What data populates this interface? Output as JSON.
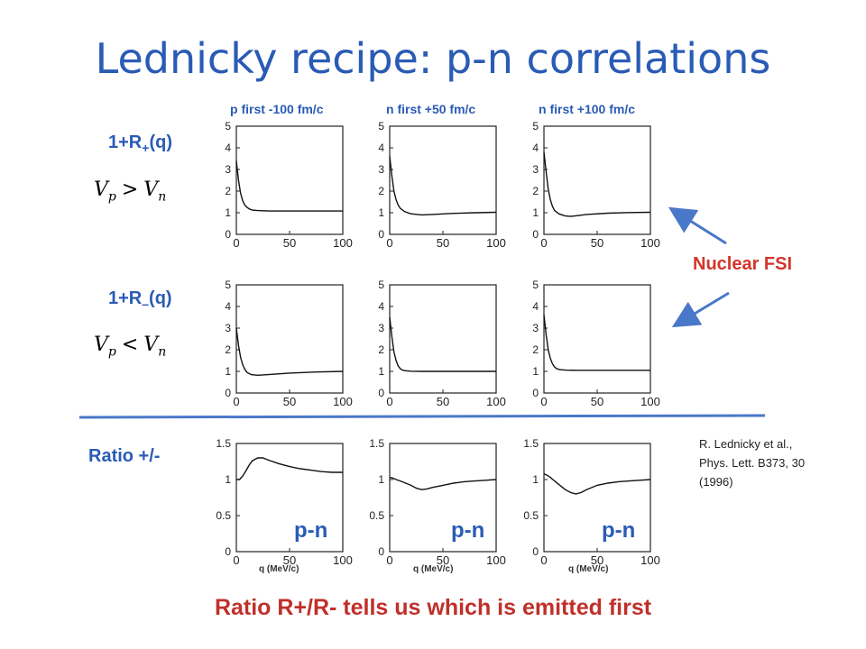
{
  "title": "Lednicky recipe: p-n correlations",
  "column_headers": [
    "p first -100 fm/c",
    "n first +50 fm/c",
    "n first +100 fm/c"
  ],
  "row_labels": {
    "plus": {
      "main": "1+R",
      "sub": "+",
      "tail": "(q)"
    },
    "minus": {
      "main": "1+R",
      "sub": "–",
      "tail": "(q)"
    },
    "ratio": "Ratio +/-"
  },
  "conditions": {
    "plus": {
      "a": "V",
      "a_sub": "p",
      "op": ">",
      "b": "V",
      "b_sub": "n"
    },
    "minus": {
      "a": "V",
      "a_sub": "p",
      "op": "<",
      "b": "V",
      "b_sub": "n"
    }
  },
  "annotation": "Nuclear FSI",
  "reference": [
    "R. Lednicky et al.,",
    "Phys. Lett. B373, 30",
    "(1996)"
  ],
  "pn_label": "p-n",
  "xlabel": "q (MeV/c)",
  "bottom_text": "Ratio R+/R- tells us which is emitted first",
  "colors": {
    "title": "#2a5bb5",
    "accent_red": "#d2352b",
    "arrow": "#4a78c8",
    "divider": "#4a78c8"
  },
  "chart_data": [
    {
      "type": "line",
      "row": "plus",
      "col": 0,
      "xlim": [
        0,
        100
      ],
      "ylim": [
        0,
        5
      ],
      "xticks": [
        "0",
        "50",
        "100"
      ],
      "yticks": [
        "0",
        "1",
        "2",
        "3",
        "4",
        "5"
      ],
      "x": [
        0,
        2,
        4,
        6,
        8,
        10,
        12,
        15,
        20,
        30,
        50,
        75,
        100
      ],
      "y": [
        3.4,
        2.5,
        1.9,
        1.55,
        1.35,
        1.25,
        1.18,
        1.12,
        1.1,
        1.08,
        1.08,
        1.08,
        1.08
      ]
    },
    {
      "type": "line",
      "row": "plus",
      "col": 1,
      "xlim": [
        0,
        100
      ],
      "ylim": [
        0,
        5
      ],
      "xticks": [
        "0",
        "50",
        "100"
      ],
      "yticks": [
        "0",
        "1",
        "2",
        "3",
        "4",
        "5"
      ],
      "x": [
        0,
        2,
        4,
        6,
        8,
        10,
        14,
        20,
        30,
        40,
        60,
        80,
        100
      ],
      "y": [
        3.6,
        2.7,
        2.0,
        1.6,
        1.35,
        1.2,
        1.05,
        0.95,
        0.9,
        0.92,
        0.97,
        1.0,
        1.02
      ]
    },
    {
      "type": "line",
      "row": "plus",
      "col": 2,
      "xlim": [
        0,
        100
      ],
      "ylim": [
        0,
        5
      ],
      "xticks": [
        "0",
        "50",
        "100"
      ],
      "yticks": [
        "0",
        "1",
        "2",
        "3",
        "4",
        "5"
      ],
      "x": [
        0,
        2,
        4,
        6,
        8,
        10,
        14,
        20,
        25,
        30,
        40,
        60,
        80,
        100
      ],
      "y": [
        3.8,
        2.9,
        2.1,
        1.6,
        1.3,
        1.1,
        0.95,
        0.85,
        0.83,
        0.86,
        0.92,
        0.98,
        1.01,
        1.02
      ]
    },
    {
      "type": "line",
      "row": "minus",
      "col": 0,
      "xlim": [
        0,
        100
      ],
      "ylim": [
        0,
        5
      ],
      "xticks": [
        "0",
        "50",
        "100"
      ],
      "yticks": [
        "0",
        "1",
        "2",
        "3",
        "4",
        "5"
      ],
      "x": [
        0,
        2,
        4,
        6,
        8,
        10,
        14,
        20,
        30,
        50,
        75,
        100
      ],
      "y": [
        3.0,
        2.2,
        1.65,
        1.3,
        1.1,
        0.95,
        0.85,
        0.82,
        0.85,
        0.92,
        0.97,
        1.0
      ]
    },
    {
      "type": "line",
      "row": "minus",
      "col": 1,
      "xlim": [
        0,
        100
      ],
      "ylim": [
        0,
        5
      ],
      "xticks": [
        "0",
        "50",
        "100"
      ],
      "yticks": [
        "0",
        "1",
        "2",
        "3",
        "4",
        "5"
      ],
      "x": [
        0,
        2,
        4,
        6,
        8,
        10,
        12,
        15,
        20,
        30,
        50,
        75,
        100
      ],
      "y": [
        3.5,
        2.6,
        1.9,
        1.5,
        1.25,
        1.12,
        1.06,
        1.03,
        1.01,
        1.0,
        1.0,
        1.0,
        1.0
      ]
    },
    {
      "type": "line",
      "row": "minus",
      "col": 2,
      "xlim": [
        0,
        100
      ],
      "ylim": [
        0,
        5
      ],
      "xticks": [
        "0",
        "50",
        "100"
      ],
      "yticks": [
        "0",
        "1",
        "2",
        "3",
        "4",
        "5"
      ],
      "x": [
        0,
        2,
        4,
        6,
        8,
        10,
        12,
        15,
        20,
        30,
        50,
        75,
        100
      ],
      "y": [
        3.6,
        2.7,
        2.0,
        1.6,
        1.35,
        1.2,
        1.12,
        1.08,
        1.06,
        1.05,
        1.05,
        1.05,
        1.05
      ]
    },
    {
      "type": "line",
      "row": "ratio",
      "col": 0,
      "xlim": [
        0,
        100
      ],
      "ylim": [
        0,
        1.5
      ],
      "xticks": [
        "0",
        "50",
        "100"
      ],
      "yticks": [
        "0",
        "0.5",
        "1",
        "1.5"
      ],
      "x": [
        0,
        3,
        6,
        9,
        12,
        15,
        20,
        25,
        30,
        40,
        50,
        60,
        70,
        80,
        90,
        100
      ],
      "y": [
        1.0,
        1.0,
        1.05,
        1.12,
        1.2,
        1.26,
        1.3,
        1.3,
        1.27,
        1.22,
        1.18,
        1.15,
        1.13,
        1.11,
        1.1,
        1.1
      ]
    },
    {
      "type": "line",
      "row": "ratio",
      "col": 1,
      "xlim": [
        0,
        100
      ],
      "ylim": [
        0,
        1.5
      ],
      "xticks": [
        "0",
        "50",
        "100"
      ],
      "yticks": [
        "0",
        "0.5",
        "1",
        "1.5"
      ],
      "x": [
        0,
        3,
        6,
        10,
        15,
        20,
        25,
        30,
        35,
        40,
        50,
        60,
        70,
        80,
        90,
        100
      ],
      "y": [
        1.03,
        1.02,
        1.0,
        0.98,
        0.95,
        0.92,
        0.88,
        0.86,
        0.87,
        0.89,
        0.92,
        0.95,
        0.97,
        0.98,
        0.99,
        1.0
      ]
    },
    {
      "type": "line",
      "row": "ratio",
      "col": 2,
      "xlim": [
        0,
        100
      ],
      "ylim": [
        0,
        1.5
      ],
      "xticks": [
        "0",
        "50",
        "100"
      ],
      "yticks": [
        "0",
        "0.5",
        "1",
        "1.5"
      ],
      "x": [
        0,
        3,
        6,
        10,
        15,
        20,
        25,
        30,
        35,
        40,
        50,
        60,
        70,
        80,
        90,
        100
      ],
      "y": [
        1.08,
        1.06,
        1.03,
        0.98,
        0.92,
        0.86,
        0.82,
        0.8,
        0.82,
        0.86,
        0.92,
        0.95,
        0.97,
        0.98,
        0.99,
        1.0
      ]
    }
  ]
}
